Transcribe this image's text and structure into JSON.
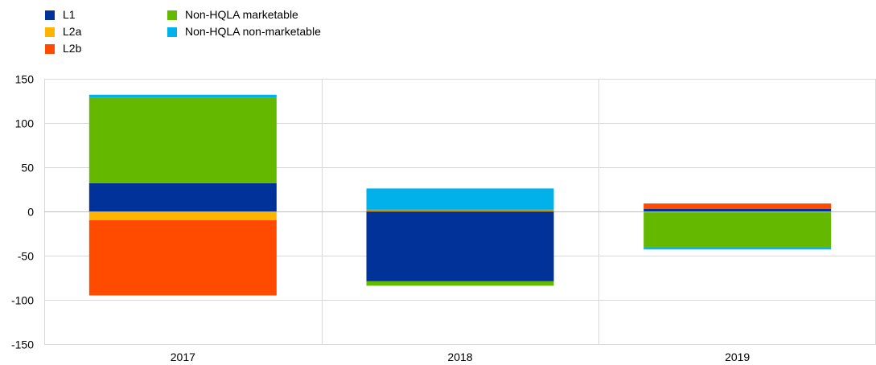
{
  "chart_data": {
    "type": "bar",
    "stacked": true,
    "title": "",
    "xlabel": "",
    "ylabel": "",
    "categories": [
      "2017",
      "2018",
      "2019"
    ],
    "ylim": [
      -150,
      150
    ],
    "yticks": [
      150,
      100,
      50,
      0,
      -50,
      -100,
      -150
    ],
    "grid": true,
    "legend_position": "top-left",
    "series": [
      {
        "name": "L1",
        "color": "#003299",
        "values": [
          32,
          -79,
          3
        ]
      },
      {
        "name": "L2a",
        "color": "#FFB400",
        "values": [
          -10,
          1,
          -1
        ]
      },
      {
        "name": "L2b",
        "color": "#FF4B00",
        "values": [
          -85,
          1,
          6
        ]
      },
      {
        "name": "Non-HQLA marketable",
        "color": "#65B800",
        "values": [
          97,
          -5,
          -40
        ]
      },
      {
        "name": "Non-HQLA non-marketable",
        "color": "#00B1EA",
        "values": [
          3,
          24,
          -2
        ]
      }
    ]
  }
}
